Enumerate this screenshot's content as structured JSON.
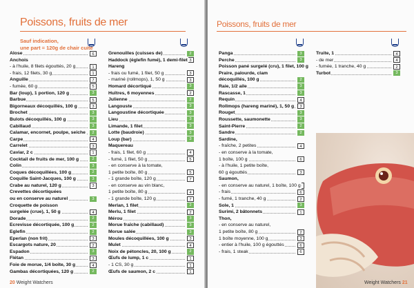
{
  "left": {
    "title": "Poissons, fruits de mer",
    "note_line1": "Sauf indication,",
    "note_line2": "une part = 120g de chair cuite",
    "footer_num": "20",
    "footer_text": "Weight Watchers",
    "col1": [
      {
        "t": "Alose",
        "p": "6",
        "s": "w",
        "b": true
      },
      {
        "t": "Anchois",
        "p": "",
        "s": "",
        "b": true
      },
      {
        "t": "- à l'huile, 8 filets égouttés, 20 g",
        "p": "1",
        "s": "w",
        "b": false
      },
      {
        "t": "- frais, 12 filets, 30 g",
        "p": "1",
        "s": "w",
        "b": false
      },
      {
        "t": "Anguille",
        "p": "7",
        "s": "w",
        "b": true
      },
      {
        "t": "- fumée, 60 g",
        "p": "5",
        "s": "w",
        "b": false
      },
      {
        "t": "Bar (loup), 1 portion, 120 g",
        "p": "3",
        "s": "g",
        "b": true
      },
      {
        "t": "Barbue",
        "p": "5",
        "s": "w",
        "b": true
      },
      {
        "t": "Bigorneaux décoquillés, 100 g",
        "p": "3",
        "s": "w",
        "b": true
      },
      {
        "t": "Brochet",
        "p": "3",
        "s": "g",
        "b": true
      },
      {
        "t": "Bulots décoquillés, 100 g",
        "p": "3",
        "s": "g",
        "b": true
      },
      {
        "t": "Cabillaud",
        "p": "3",
        "s": "g",
        "b": true
      },
      {
        "t": "Calamar, encornet, poulpe, seiche",
        "p": "2",
        "s": "g",
        "b": true
      },
      {
        "t": "Carpe",
        "p": "4",
        "s": "w",
        "b": true
      },
      {
        "t": "Carrelet",
        "p": "3",
        "s": "w",
        "b": true
      },
      {
        "t": "Caviar, 2 c",
        "p": "1",
        "s": "w",
        "b": true
      },
      {
        "t": "Cocktail de fruits de mer, 100 g",
        "p": "2",
        "s": "g",
        "b": true
      },
      {
        "t": "Colin",
        "p": "3",
        "s": "g",
        "b": true
      },
      {
        "t": "Coques décoquillées, 100 g",
        "p": "2",
        "s": "g",
        "b": true
      },
      {
        "t": "Coquille Saint-Jacques, 100 g",
        "p": "3",
        "s": "g",
        "b": true
      },
      {
        "t": "Crabe au naturel, 120 g",
        "p": "3",
        "s": "w",
        "b": true
      },
      {
        "t": "Crevettes décortiquées",
        "p": "",
        "s": "",
        "b": true
      },
      {
        "t": "ou en conserve au naturel",
        "p": "3",
        "s": "g",
        "b": true
      },
      {
        "t": "Croquette de poisson",
        "p": "",
        "s": "",
        "b": true
      },
      {
        "t": "surgelée (crue), 1, 50 g",
        "p": "4",
        "s": "w",
        "b": true
      },
      {
        "t": "Dorade",
        "p": "2",
        "s": "g",
        "b": true
      },
      {
        "t": "Ecrevisse décortiquée, 100 g",
        "p": "2",
        "s": "g",
        "b": true
      },
      {
        "t": "Eglefin",
        "p": "2",
        "s": "g",
        "b": true
      },
      {
        "t": "Eperlan (non frit)",
        "p": "3",
        "s": "w",
        "b": true
      },
      {
        "t": "Escargots nature, 20",
        "p": "2",
        "s": "w",
        "b": true
      },
      {
        "t": "Espadon",
        "p": "3",
        "s": "g",
        "b": true
      },
      {
        "t": "Flétan",
        "p": "3",
        "s": "w",
        "b": true
      },
      {
        "t": "Foie de morue, 1/4 boîte, 30 g",
        "p": "4",
        "s": "w",
        "b": true
      },
      {
        "t": "Gambas décortiquées, 120 g",
        "p": "2",
        "s": "g",
        "b": true
      }
    ],
    "col2": [
      {
        "t": "Grenouilles (cuisses de)",
        "p": "2",
        "s": "g",
        "b": true
      },
      {
        "t": "Haddock (églefin fumé), 1 demi-filet",
        "p": "3",
        "s": "w",
        "b": true
      },
      {
        "t": "Hareng",
        "p": "",
        "s": "",
        "b": true
      },
      {
        "t": "- frais ou fumé, 1 filet, 50 g",
        "p": "3",
        "s": "w",
        "b": false
      },
      {
        "t": "- mariné (rollmops), 1, 50 g",
        "p": "3",
        "s": "w",
        "b": false
      },
      {
        "t": "Homard décortiqué",
        "p": "3",
        "s": "g",
        "b": true
      },
      {
        "t": "Huîtres, 6 moyennes",
        "p": "2",
        "s": "w",
        "b": true
      },
      {
        "t": "Julienne",
        "p": "2",
        "s": "g",
        "b": true
      },
      {
        "t": "Langouste",
        "p": "3",
        "s": "g",
        "b": true
      },
      {
        "t": "Langoustine décortiquée",
        "p": "3",
        "s": "g",
        "b": true
      },
      {
        "t": "Lieu",
        "p": "3",
        "s": "g",
        "b": true
      },
      {
        "t": "Limande, 1 filet",
        "p": "3",
        "s": "g",
        "b": true
      },
      {
        "t": "Lotte (baudroie)",
        "p": "3",
        "s": "g",
        "b": true
      },
      {
        "t": "Loup (bar)",
        "p": "3",
        "s": "g",
        "b": true
      },
      {
        "t": "Maquereau",
        "p": "",
        "s": "",
        "b": true
      },
      {
        "t": "- frais, 1 filet, 60 g",
        "p": "4",
        "s": "w",
        "b": false
      },
      {
        "t": "- fumé, 1 filet, 50 g",
        "p": "5",
        "s": "w",
        "b": false
      },
      {
        "t": "- en conserve à la tomate,",
        "p": "",
        "s": "",
        "b": false
      },
      {
        "t": "  1 petite boîte, 80 g",
        "p": "5",
        "s": "w",
        "b": false
      },
      {
        "t": "  - 1 grande boîte, 120 g",
        "p": "7",
        "s": "w",
        "b": false
      },
      {
        "t": "- en conserve au vin blanc,",
        "p": "",
        "s": "",
        "b": false
      },
      {
        "t": "  1 petite boîte, 80 g",
        "p": "4",
        "s": "w",
        "b": false
      },
      {
        "t": "  - 1 grande boîte, 120 g",
        "p": "7",
        "s": "w",
        "b": false
      },
      {
        "t": "Merlan, 1 filet",
        "p": "2",
        "s": "g",
        "b": true
      },
      {
        "t": "Merlu, 1 filet",
        "p": "2",
        "s": "w",
        "b": true
      },
      {
        "t": "Mérou",
        "p": "3",
        "s": "g",
        "b": true
      },
      {
        "t": "Morue fraîche (cabillaud)",
        "p": "3",
        "s": "g",
        "b": true
      },
      {
        "t": "Morue salée",
        "p": "3",
        "s": "g",
        "b": true
      },
      {
        "t": "Moules décoquillées, 100 g",
        "p": "3",
        "s": "w",
        "b": true
      },
      {
        "t": "Mulet",
        "p": "4",
        "s": "w",
        "b": true
      },
      {
        "t": "Noix de pétoncles, 20, 100 g",
        "p": "2",
        "s": "g",
        "b": true
      },
      {
        "t": "Œufs de lump, 1 c",
        "p": "1",
        "s": "w",
        "b": true
      },
      {
        "t": "- 1 CS, 30 g",
        "p": "1",
        "s": "w",
        "b": false
      },
      {
        "t": "Œufs de saumon, 2 c",
        "p": "1",
        "s": "w",
        "b": true
      }
    ]
  },
  "right": {
    "title": "Poissons, fruits de mer",
    "footer_text": "Weight Watchers",
    "footer_num": "21",
    "col1": [
      {
        "t": "Panga",
        "p": "3",
        "s": "g",
        "b": true
      },
      {
        "t": "Perche",
        "p": "3",
        "s": "g",
        "b": true
      },
      {
        "t": "Poisson pané surgelé (cru), 1 filet, 100 g",
        "p": "5",
        "s": "w",
        "b": true
      },
      {
        "t": "Praire, palourde, clam",
        "p": "",
        "s": "",
        "b": true
      },
      {
        "t": "décoquillés, 100 g",
        "p": "2",
        "s": "g",
        "b": true
      },
      {
        "t": "Raie, 1/2 aile",
        "p": "3",
        "s": "g",
        "b": true
      },
      {
        "t": "Rascasse, 1",
        "p": "3",
        "s": "g",
        "b": true
      },
      {
        "t": "Requin",
        "p": "4",
        "s": "w",
        "b": true
      },
      {
        "t": "Rollmops (hareng mariné), 1, 50 g",
        "p": "3",
        "s": "w",
        "b": true
      },
      {
        "t": "Rouget",
        "p": "3",
        "s": "g",
        "b": true
      },
      {
        "t": "Roussette, saumonette",
        "p": "3",
        "s": "g",
        "b": true
      },
      {
        "t": "Saint-Pierre",
        "p": "2",
        "s": "g",
        "b": true
      },
      {
        "t": "Sandre",
        "p": "2",
        "s": "g",
        "b": true
      },
      {
        "t": "Sardine,",
        "p": "",
        "s": "",
        "b": true
      },
      {
        "t": "- fraîche, 2 petites",
        "p": "4",
        "s": "w",
        "b": false
      },
      {
        "t": "- en conserve à la tomate,",
        "p": "",
        "s": "",
        "b": false
      },
      {
        "t": "  1 boîte, 100 g",
        "p": "6",
        "s": "w",
        "b": false
      },
      {
        "t": "- à l'huile, 1 petite boîte,",
        "p": "",
        "s": "",
        "b": false
      },
      {
        "t": "  60 g égouttés",
        "p": "3",
        "s": "w",
        "b": false
      },
      {
        "t": "Saumon,",
        "p": "",
        "s": "",
        "b": true
      },
      {
        "t": "- en conserve au naturel, 1 boîte, 100 g",
        "p": "3",
        "s": "w",
        "b": false
      },
      {
        "t": "- frais",
        "p": "6",
        "s": "w",
        "b": false
      },
      {
        "t": "- fumé, 1 tranche, 40 g",
        "p": "2",
        "s": "w",
        "b": false
      },
      {
        "t": "Sole, 1",
        "p": "3",
        "s": "g",
        "b": true
      },
      {
        "t": "Surimi, 2 bâtonnets",
        "p": "1",
        "s": "w",
        "b": true
      },
      {
        "t": "Thon,",
        "p": "",
        "s": "",
        "b": true
      },
      {
        "t": "- en conserve au naturel,",
        "p": "",
        "s": "",
        "b": false
      },
      {
        "t": "  1 petite boîte, 80 g",
        "p": "2",
        "s": "w",
        "b": false
      },
      {
        "t": "  1 boîte moyenne, 100 g",
        "p": "3",
        "s": "w",
        "b": false
      },
      {
        "t": "- entier à l'huile, 100 g égouttés",
        "p": "6",
        "s": "w",
        "b": false
      },
      {
        "t": "- frais, 1 steak",
        "p": "6",
        "s": "w",
        "b": false
      }
    ],
    "col2": [
      {
        "t": "Truite, 1",
        "p": "4",
        "s": "w",
        "b": true
      },
      {
        "t": "- de mer",
        "p": "4",
        "s": "w",
        "b": false
      },
      {
        "t": "- fumée, 1 tranche, 40 g",
        "p": "2",
        "s": "w",
        "b": false
      },
      {
        "t": "Turbot",
        "p": "3",
        "s": "g",
        "b": true
      }
    ]
  },
  "colors": {
    "accent": "#e2703a",
    "green": "#74b85e",
    "icon": "#1f3f8a"
  }
}
